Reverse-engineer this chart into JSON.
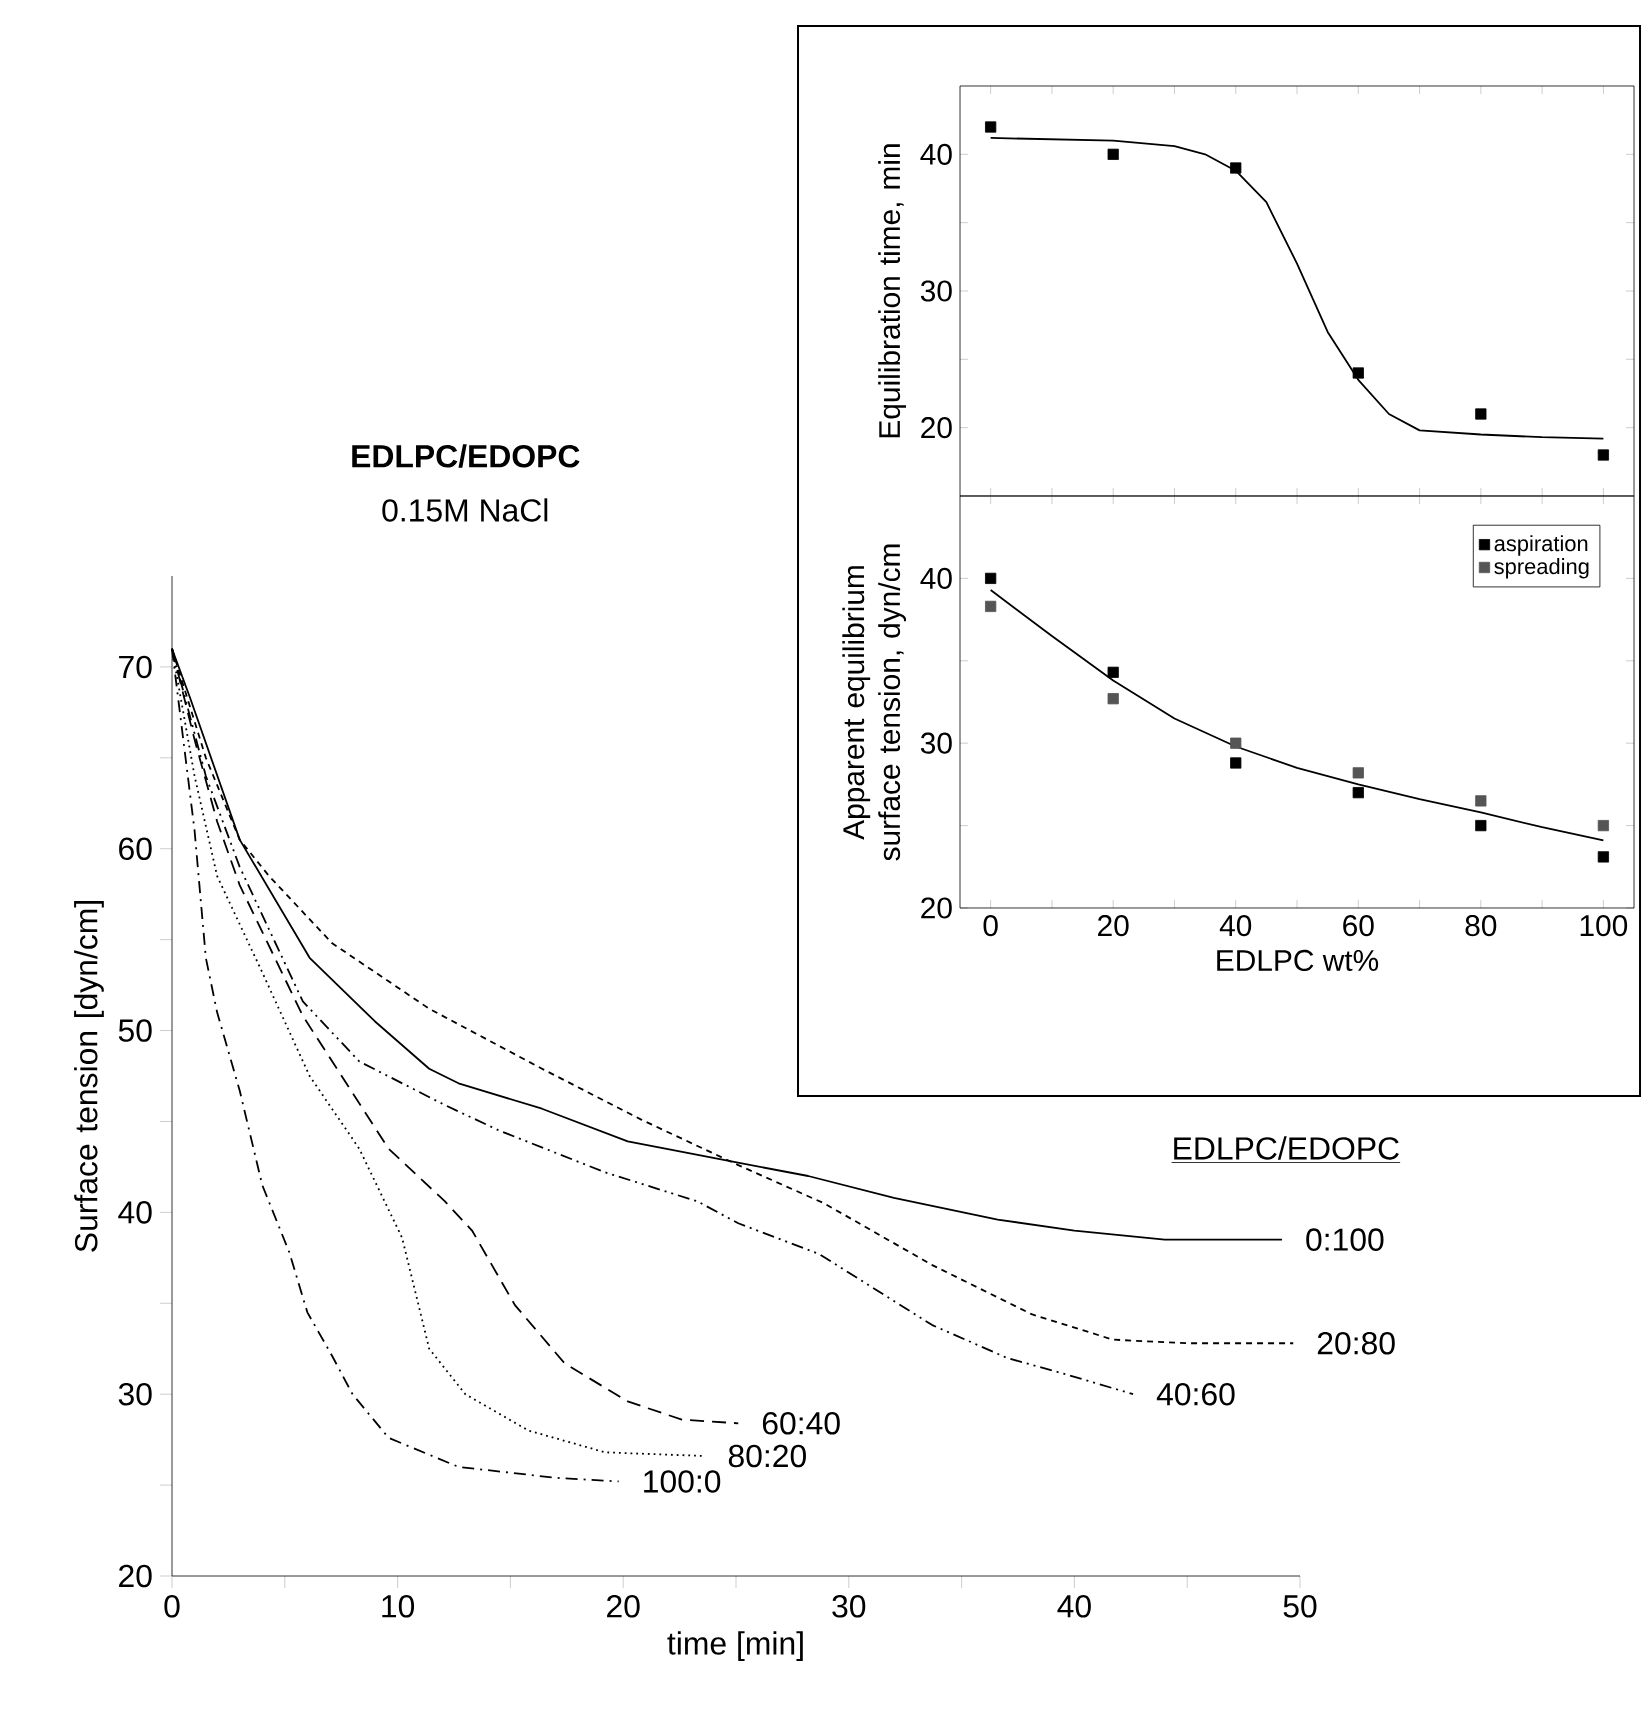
{
  "chart_data": [
    {
      "type": "line",
      "title": "EDLPC/EDOPC",
      "subtitle": "0.15M NaCl",
      "legend_title": "EDLPC/EDOPC",
      "xlabel": "time [min]",
      "ylabel": "Surface tension [dyn/cm]",
      "xlim": [
        0,
        50
      ],
      "ylim": [
        20,
        75
      ],
      "xticks": [
        0,
        {
          "value": 5,
          "label": null
        },
        10,
        {
          "value": 15,
          "label": null
        },
        20,
        {
          "value": 25,
          "label": null
        },
        30,
        {
          "value": 35,
          "label": null
        },
        40,
        {
          "value": 45,
          "label": null
        },
        50
      ],
      "yticks": [
        20,
        {
          "value": 25,
          "label": null
        },
        30,
        {
          "value": 35,
          "label": null
        },
        40,
        {
          "value": 45,
          "label": null
        },
        50,
        {
          "value": 55,
          "label": null
        },
        60,
        {
          "value": 65,
          "label": null
        },
        70
      ],
      "legend": false,
      "series": [
        {
          "name": "0:100",
          "color": "#000000",
          "line_style": "solid",
          "x": [
            0,
            0.8,
            3,
            6.1,
            9,
            11.4,
            12.7,
            16.4,
            20.2,
            24.8,
            28.2,
            32,
            36.6,
            40,
            44,
            49.2
          ],
          "values": [
            71,
            68.3,
            60.5,
            54,
            50.5,
            47.9,
            47.1,
            45.7,
            43.9,
            42.8,
            42,
            40.8,
            39.6,
            39,
            38.5,
            38.5
          ]
        },
        {
          "name": "20:80",
          "color": "#000000",
          "line_style": "densely dashed",
          "x": [
            0,
            1.5,
            3,
            4.3,
            7.1,
            11.4,
            16.4,
            20.8,
            25.1,
            28.9,
            33.7,
            38.1,
            41.7,
            45,
            49.7
          ],
          "values": [
            71,
            65,
            60.5,
            58.5,
            54.8,
            51.2,
            47.9,
            45.1,
            42.6,
            40.5,
            37.1,
            34.4,
            33,
            32.8,
            32.8
          ]
        },
        {
          "name": "40:60",
          "color": "#000000",
          "line_style": "dashdotdotted",
          "x": [
            0,
            1.5,
            3,
            5.8,
            8.3,
            12.1,
            14.5,
            19.2,
            23.3,
            25.1,
            28.7,
            33.7,
            37,
            39.6,
            42.6
          ],
          "values": [
            71,
            64,
            59,
            51.6,
            48.3,
            45.9,
            44.5,
            42.2,
            40.6,
            39.4,
            37.7,
            33.8,
            32,
            31.1,
            30
          ]
        },
        {
          "name": "60:40",
          "color": "#000000",
          "line_style": "dashed",
          "x": [
            0,
            1,
            2,
            3,
            5.8,
            9.6,
            12.1,
            13.3,
            15.2,
            17.4,
            20.2,
            22.6,
            25.1
          ],
          "values": [
            71,
            66,
            61.5,
            58,
            50.8,
            43.5,
            40.6,
            39,
            34.9,
            31.7,
            29.6,
            28.6,
            28.4
          ]
        },
        {
          "name": "80:20",
          "color": "#000000",
          "line_style": "dotted",
          "x": [
            0,
            1,
            2,
            4,
            6.1,
            8.3,
            10.2,
            11.4,
            13,
            15.8,
            19.2,
            23.6
          ],
          "values": [
            71,
            64,
            58.5,
            53.2,
            47.5,
            43.5,
            38.6,
            32.5,
            30,
            28,
            26.8,
            26.6
          ]
        },
        {
          "name": "100:0",
          "color": "#000000",
          "line_style": "dashdotted",
          "x": [
            0,
            0.5,
            1,
            1.5,
            2,
            3,
            4,
            5.2,
            6,
            7.1,
            8,
            9.6,
            12.7,
            17,
            19.8
          ],
          "values": [
            71,
            66,
            61,
            54,
            51,
            46.7,
            41.5,
            37.8,
            34.5,
            32.1,
            30,
            27.6,
            26,
            25.4,
            25.2
          ]
        }
      ]
    },
    {
      "type": "scatter",
      "ylabel": "Equilibration time, min",
      "xlim": [
        -5,
        105
      ],
      "ylim": [
        15,
        45
      ],
      "tick_labels": "y",
      "xticks": [
        0,
        {
          "value": 10,
          "label": null
        },
        20,
        {
          "value": 30,
          "label": null
        },
        40,
        {
          "value": 50,
          "label": null
        },
        60,
        {
          "value": 70,
          "label": null
        },
        80,
        {
          "value": 90,
          "label": null
        },
        100
      ],
      "yticks": [
        20,
        {
          "value": 25,
          "label": null
        },
        30,
        {
          "value": 35,
          "label": null
        },
        40
      ],
      "series": [
        {
          "type": "scatter",
          "color": "#000000",
          "marker": "square",
          "x": [
            0,
            20,
            40,
            60,
            80,
            100
          ],
          "values": [
            42,
            40,
            39,
            24,
            21,
            18
          ]
        },
        {
          "type": "line",
          "color": "#000000",
          "line_style": "solid",
          "x": [
            0,
            10,
            20,
            30,
            35,
            40,
            45,
            50,
            55,
            60,
            65,
            70,
            80,
            90,
            100
          ],
          "values": [
            41.2,
            41.1,
            41,
            40.6,
            40,
            38.8,
            36.5,
            32,
            27,
            23.5,
            21,
            19.8,
            19.5,
            19.3,
            19.2
          ]
        }
      ]
    },
    {
      "type": "scatter",
      "xlabel": "EDLPC wt%",
      "ylabel": "Apparent equilibrium surface tension, dyn/cm",
      "xlim": [
        -5,
        105
      ],
      "ylim": [
        20,
        45
      ],
      "legend": "top right",
      "xticks": [
        0,
        {
          "value": 10,
          "label": null
        },
        20,
        {
          "value": 30,
          "label": null
        },
        40,
        {
          "value": 50,
          "label": null
        },
        60,
        {
          "value": 70,
          "label": null
        },
        80,
        {
          "value": 90,
          "label": null
        },
        100
      ],
      "yticks": [
        20,
        {
          "value": 25,
          "label": null
        },
        30,
        {
          "value": 35,
          "label": null
        },
        40
      ],
      "series": [
        {
          "type": "scatter",
          "name": "aspiration",
          "color": "#000000",
          "marker": "square",
          "x": [
            0,
            20,
            40,
            60,
            80,
            100
          ],
          "values": [
            40,
            34.3,
            28.8,
            27,
            25,
            23.1
          ]
        },
        {
          "type": "scatter",
          "name": "spreading",
          "color": "#555555",
          "marker": "square",
          "x": [
            0,
            20,
            40,
            60,
            80,
            100
          ],
          "values": [
            38.3,
            32.7,
            30,
            28.2,
            26.5,
            25
          ]
        },
        {
          "type": "line",
          "color": "#000000",
          "line_style": "solid",
          "x": [
            0,
            10,
            20,
            30,
            40,
            50,
            60,
            70,
            80,
            90,
            100
          ],
          "values": [
            39.3,
            36.5,
            33.8,
            31.5,
            29.8,
            28.5,
            27.5,
            26.6,
            25.8,
            24.9,
            24.1
          ]
        }
      ]
    }
  ]
}
